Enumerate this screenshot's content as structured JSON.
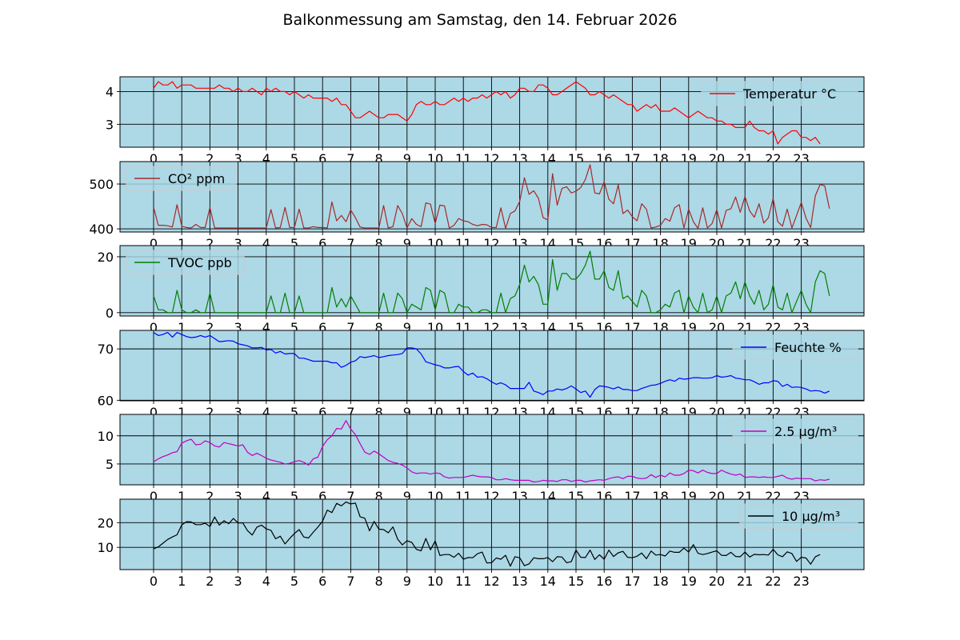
{
  "figure": {
    "title": "Balkonmessung am Samstag, den 14. Februar 2026"
  },
  "chart_data": [
    {
      "type": "line",
      "series": [
        {
          "name": "Temperatur °C",
          "color": "#ff0000",
          "y": [
            4.1,
            4.3,
            4.2,
            4.2,
            4.3,
            4.1,
            4.2,
            4.2,
            4.2,
            4.1,
            4.1,
            4.1,
            4.1,
            4.1,
            4.2,
            4.1,
            4.1,
            4.0,
            4.1,
            4.0,
            4.0,
            4.1,
            4.0,
            3.9,
            4.1,
            4.0,
            4.1,
            4.0,
            4.0,
            3.9,
            4.0,
            3.9,
            3.8,
            3.9,
            3.8,
            3.8,
            3.8,
            3.8,
            3.7,
            3.8,
            3.6,
            3.6,
            3.4,
            3.2,
            3.2,
            3.3,
            3.4,
            3.3,
            3.2,
            3.2,
            3.3,
            3.3,
            3.3,
            3.2,
            3.1,
            3.3,
            3.6,
            3.7,
            3.6,
            3.6,
            3.7,
            3.6,
            3.6,
            3.7,
            3.8,
            3.7,
            3.8,
            3.7,
            3.8,
            3.8,
            3.9,
            3.8,
            3.9,
            4.0,
            3.9,
            4.0,
            3.8,
            3.9,
            4.1,
            4.1,
            4.0,
            4.0,
            4.2,
            4.2,
            4.1,
            3.9,
            3.9,
            4.0,
            4.1,
            4.2,
            4.3,
            4.2,
            4.1,
            3.9,
            3.9,
            4.0,
            3.9,
            3.8,
            3.9,
            3.8,
            3.7,
            3.6,
            3.6,
            3.4,
            3.5,
            3.6,
            3.5,
            3.6,
            3.4,
            3.4,
            3.4,
            3.5,
            3.4,
            3.3,
            3.2,
            3.3,
            3.4,
            3.3,
            3.2,
            3.2,
            3.1,
            3.1,
            3.0,
            3.0,
            2.9,
            2.9,
            2.9,
            3.1,
            2.9,
            2.8,
            2.8,
            2.7,
            2.8,
            2.4,
            2.6,
            2.7,
            2.8,
            2.8,
            2.6,
            2.6,
            2.5,
            2.6,
            2.4
          ]
        }
      ],
      "x_ticks": [
        "0",
        "1",
        "2",
        "3",
        "4",
        "5",
        "6",
        "7",
        "8",
        "9",
        "10",
        "11",
        "12",
        "13",
        "14",
        "15",
        "16",
        "17",
        "18",
        "19",
        "20",
        "21",
        "22",
        "23"
      ],
      "y_ticks": [
        3,
        4
      ],
      "ylim": [
        2.3,
        4.45
      ],
      "grid": true,
      "legend": "upper right"
    },
    {
      "type": "line",
      "series": [
        {
          "name": "CO² ppm",
          "color": "#a52a2a",
          "y": [
            448,
            408,
            408,
            407,
            404,
            454,
            406,
            403,
            402,
            410,
            403,
            403,
            448,
            402,
            402,
            402,
            402,
            402,
            402,
            402,
            402,
            402,
            402,
            402,
            402,
            443,
            402,
            403,
            448,
            403,
            403,
            444,
            402,
            402,
            405,
            403,
            403,
            402,
            460,
            418,
            430,
            416,
            442,
            425,
            404,
            402,
            402,
            402,
            402,
            452,
            402,
            405,
            452,
            434,
            402,
            423,
            410,
            405,
            458,
            455,
            412,
            453,
            451,
            402,
            408,
            423,
            418,
            416,
            410,
            407,
            410,
            409,
            403,
            403,
            447,
            401,
            434,
            440,
            461,
            514,
            477,
            485,
            468,
            425,
            420,
            523,
            453,
            490,
            494,
            480,
            484,
            492,
            510,
            543,
            480,
            478,
            505,
            466,
            456,
            498,
            434,
            442,
            427,
            418,
            456,
            444,
            402,
            404,
            408,
            423,
            417,
            447,
            454,
            402,
            444,
            416,
            401,
            447,
            402,
            412,
            443,
            402,
            441,
            445,
            471,
            437,
            472,
            440,
            426,
            456,
            413,
            425,
            468,
            416,
            406,
            444,
            402,
            430,
            459,
            424,
            403,
            474,
            499,
            496,
            445
          ]
        }
      ],
      "x_ticks": [
        "0",
        "1",
        "2",
        "3",
        "4",
        "5",
        "6",
        "7",
        "8",
        "9",
        "10",
        "11",
        "12",
        "13",
        "14",
        "15",
        "16",
        "17",
        "18",
        "19",
        "20",
        "21",
        "22",
        "23"
      ],
      "y_ticks": [
        400,
        500
      ],
      "ylim": [
        393,
        550
      ],
      "grid": true,
      "legend": "upper left"
    },
    {
      "type": "line",
      "series": [
        {
          "name": "TVOC ppb",
          "color": "#008000",
          "y": [
            6,
            1,
            1,
            0,
            0,
            8,
            1,
            0,
            0,
            1,
            0,
            0,
            7,
            0,
            0,
            0,
            0,
            0,
            0,
            0,
            0,
            0,
            0,
            0,
            0,
            6,
            0,
            0,
            7,
            0,
            0,
            6,
            0,
            0,
            0,
            0,
            0,
            0,
            9,
            2,
            5,
            2,
            6,
            3,
            0,
            0,
            0,
            0,
            0,
            7,
            0,
            0,
            7,
            5,
            0,
            3,
            2,
            1,
            9,
            8,
            1,
            8,
            7,
            0,
            0,
            3,
            2,
            2,
            0,
            0,
            1,
            1,
            0,
            0,
            7,
            0,
            5,
            6,
            10,
            17,
            11,
            13,
            10,
            3,
            3,
            19,
            8,
            14,
            14,
            12,
            12,
            14,
            17,
            22,
            12,
            12,
            15,
            9,
            8,
            15,
            5,
            6,
            4,
            2,
            8,
            6,
            0,
            0,
            1,
            3,
            2,
            7,
            8,
            0,
            6,
            2,
            0,
            7,
            0,
            1,
            6,
            0,
            6,
            7,
            11,
            5,
            11,
            6,
            3,
            8,
            1,
            3,
            10,
            2,
            1,
            7,
            0,
            4,
            8,
            3,
            0,
            11,
            15,
            14,
            6
          ]
        }
      ],
      "x_ticks": [
        "0",
        "1",
        "2",
        "3",
        "4",
        "5",
        "6",
        "7",
        "8",
        "9",
        "10",
        "11",
        "12",
        "13",
        "14",
        "15",
        "16",
        "17",
        "18",
        "19",
        "20",
        "21",
        "22",
        "23"
      ],
      "y_ticks": [
        0,
        20
      ],
      "ylim": [
        -1.2,
        24
      ],
      "grid": true,
      "legend": "upper left"
    },
    {
      "type": "line",
      "series": [
        {
          "name": "Feuchte %",
          "color": "#0000ff",
          "y": [
            73.2,
            72.6,
            72.8,
            73.2,
            72.3,
            73.2,
            72.8,
            72.4,
            72.2,
            72.3,
            72.6,
            72.3,
            72.6,
            72.0,
            71.4,
            71.5,
            71.6,
            71.5,
            71.0,
            70.8,
            70.6,
            70.2,
            70.2,
            70.3,
            69.8,
            69.9,
            69.2,
            69.5,
            69.0,
            69.1,
            69.1,
            68.2,
            68.2,
            67.9,
            67.6,
            67.6,
            67.6,
            67.6,
            67.3,
            67.3,
            66.4,
            66.8,
            67.4,
            67.7,
            68.5,
            68.3,
            68.5,
            68.7,
            68.3,
            68.5,
            68.7,
            68.8,
            68.9,
            69.1,
            70.2,
            70.2,
            70.0,
            69.0,
            67.5,
            67.2,
            66.9,
            66.7,
            66.3,
            66.3,
            66.5,
            66.6,
            65.6,
            64.9,
            65.3,
            64.5,
            64.6,
            64.2,
            63.6,
            63.1,
            63.4,
            63.0,
            62.3,
            62.3,
            62.3,
            62.3,
            63.5,
            61.8,
            61.5,
            61.1,
            61.8,
            61.8,
            62.2,
            62.0,
            62.3,
            62.8,
            62.2,
            61.5,
            61.8,
            60.6,
            62.1,
            62.8,
            62.7,
            62.5,
            62.2,
            62.6,
            62.1,
            62.1,
            61.9,
            61.9,
            62.3,
            62.6,
            62.9,
            63.0,
            63.3,
            63.7,
            64.0,
            63.7,
            64.3,
            64.1,
            64.2,
            64.4,
            64.4,
            64.3,
            64.3,
            64.4,
            64.8,
            64.5,
            64.6,
            64.8,
            64.3,
            64.2,
            64.0,
            64.0,
            63.6,
            63.1,
            63.4,
            63.4,
            63.8,
            63.7,
            62.7,
            63.1,
            62.5,
            62.6,
            62.5,
            62.2,
            61.8,
            61.9,
            61.8,
            61.4,
            61.8
          ]
        }
      ],
      "x_ticks": [
        "0",
        "1",
        "2",
        "3",
        "4",
        "5",
        "6",
        "7",
        "8",
        "9",
        "10",
        "11",
        "12",
        "13",
        "14",
        "15",
        "16",
        "17",
        "18",
        "19",
        "20",
        "21",
        "22",
        "23"
      ],
      "y_ticks": [
        60,
        70
      ],
      "ylim": [
        59.9,
        73.6
      ],
      "grid": true,
      "legend": "upper right"
    },
    {
      "type": "line",
      "series": [
        {
          "name": "2.5 µg/m³",
          "color": "#c000c0",
          "y": [
            5.4,
            5.9,
            6.3,
            6.6,
            7.0,
            7.2,
            8.7,
            9.1,
            9.4,
            8.4,
            8.5,
            9.1,
            8.8,
            8.2,
            8.0,
            8.8,
            8.6,
            8.4,
            8.2,
            8.4,
            7.1,
            6.5,
            6.9,
            6.5,
            6.0,
            5.7,
            5.5,
            5.3,
            5.0,
            5.1,
            5.4,
            5.6,
            5.3,
            4.8,
            5.9,
            6.2,
            8.1,
            9.3,
            10.0,
            11.3,
            11.2,
            12.7,
            11.2,
            10.2,
            8.6,
            7.1,
            6.7,
            7.3,
            6.8,
            6.2,
            5.6,
            5.3,
            5.1,
            4.8,
            4.3,
            3.6,
            3.3,
            3.4,
            3.4,
            3.2,
            3.4,
            3.3,
            2.7,
            2.5,
            2.6,
            2.6,
            2.6,
            2.8,
            3.0,
            2.8,
            2.7,
            2.7,
            2.6,
            2.2,
            2.2,
            2.4,
            2.2,
            2.1,
            2.1,
            2.1,
            2.1,
            1.8,
            1.9,
            2.1,
            2.0,
            2.0,
            1.9,
            2.2,
            2.2,
            1.9,
            2.1,
            2.1,
            1.8,
            2.0,
            2.1,
            2.2,
            2.1,
            2.4,
            2.6,
            2.7,
            2.4,
            2.8,
            2.8,
            2.5,
            2.4,
            2.5,
            3.1,
            2.6,
            3.0,
            2.7,
            3.4,
            3.0,
            3.0,
            3.3,
            3.9,
            3.8,
            3.4,
            3.9,
            3.5,
            3.3,
            3.3,
            3.9,
            3.5,
            3.2,
            3.0,
            3.2,
            2.6,
            2.7,
            2.7,
            2.6,
            2.7,
            2.6,
            2.6,
            2.8,
            3.0,
            2.5,
            2.3,
            2.5,
            2.4,
            2.4,
            2.4,
            2.0,
            2.2,
            2.1,
            2.3
          ]
        }
      ],
      "x_ticks": [
        "0",
        "1",
        "2",
        "3",
        "4",
        "5",
        "6",
        "7",
        "8",
        "9",
        "10",
        "11",
        "12",
        "13",
        "14",
        "15",
        "16",
        "17",
        "18",
        "19",
        "20",
        "21",
        "22",
        "23"
      ],
      "y_ticks": [
        5,
        10
      ],
      "ylim": [
        1.3,
        13.8
      ],
      "grid": true,
      "legend": "upper right"
    },
    {
      "type": "line",
      "series": [
        {
          "name": "10 µg/m³",
          "color": "#000000",
          "y": [
            9.4,
            10.2,
            11.7,
            13.2,
            14.2,
            15.1,
            19.1,
            20.4,
            20.3,
            19.2,
            19.2,
            19.8,
            18.4,
            22.3,
            19.0,
            20.8,
            19.6,
            21.7,
            19.9,
            19.9,
            16.8,
            15.0,
            18.2,
            19.0,
            17.5,
            16.9,
            13.5,
            14.5,
            11.4,
            13.6,
            15.6,
            17.2,
            14.2,
            13.8,
            16.1,
            18.2,
            20.6,
            25.1,
            24.1,
            27.8,
            26.8,
            28.4,
            27.6,
            27.9,
            22.4,
            21.8,
            16.7,
            20.5,
            17.4,
            17.2,
            15.9,
            18.3,
            13.3,
            11.0,
            12.7,
            12.0,
            9.2,
            8.6,
            13.6,
            9.0,
            12.6,
            6.7,
            7.1,
            7.1,
            6.0,
            7.6,
            5.2,
            5.9,
            5.8,
            7.4,
            8.1,
            3.7,
            3.8,
            5.7,
            5.2,
            6.8,
            2.4,
            6.2,
            5.8,
            2.6,
            3.3,
            5.8,
            5.4,
            5.4,
            5.9,
            4.2,
            6.2,
            6.1,
            3.8,
            4.2,
            8.9,
            6.0,
            5.9,
            8.9,
            5.1,
            7.0,
            5.2,
            8.9,
            6.3,
            7.8,
            8.4,
            6.0,
            5.8,
            6.4,
            7.7,
            5.4,
            8.5,
            6.9,
            7.1,
            6.5,
            8.5,
            8.0,
            8.0,
            9.7,
            8.1,
            11.1,
            7.6,
            7.1,
            7.5,
            8.1,
            8.6,
            6.8,
            6.7,
            8.0,
            6.3,
            6.2,
            8.1,
            6.1,
            7.2,
            7.0,
            7.1,
            6.9,
            9.2,
            7.0,
            6.2,
            8.2,
            7.5,
            4.3,
            6.0,
            5.7,
            3.2,
            6.2,
            7.1
          ]
        }
      ],
      "x_ticks": [
        "0",
        "1",
        "2",
        "3",
        "4",
        "5",
        "6",
        "7",
        "8",
        "9",
        "10",
        "11",
        "12",
        "13",
        "14",
        "15",
        "16",
        "17",
        "18",
        "19",
        "20",
        "21",
        "22",
        "23"
      ],
      "y_ticks": [
        10,
        20
      ],
      "ylim": [
        1,
        29.5
      ],
      "grid": true,
      "legend": "upper right"
    }
  ]
}
